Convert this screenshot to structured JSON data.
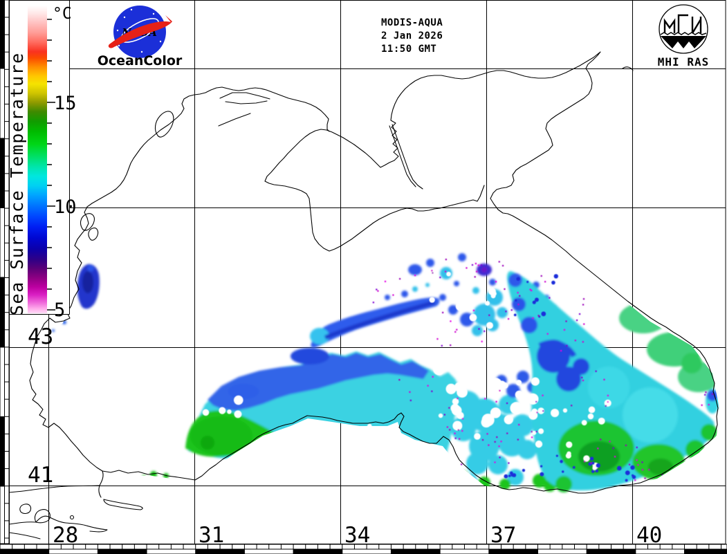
{
  "branding": {
    "nasa_text": "NASA",
    "oceancolor": "OceanColor",
    "mhi_ras": "MHI RAS"
  },
  "header": {
    "sensor": "MODIS-AQUA",
    "date": "2 Jan 2026",
    "time": "11:50 GMT"
  },
  "colorbar": {
    "title": "Sea Surface Temperature",
    "unit": "°C",
    "ticks": [
      "15",
      "10",
      "5"
    ],
    "gradient": [
      [
        0,
        "#ffffff"
      ],
      [
        0.025,
        "#ffe8e8"
      ],
      [
        0.055,
        "#ffc2c2"
      ],
      [
        0.09,
        "#ff9a94"
      ],
      [
        0.12,
        "#ff6a5e"
      ],
      [
        0.15,
        "#f93220"
      ],
      [
        0.17,
        "#fb4a00"
      ],
      [
        0.2,
        "#ff9000"
      ],
      [
        0.23,
        "#ffc800"
      ],
      [
        0.255,
        "#f5e300"
      ],
      [
        0.285,
        "#cfc400"
      ],
      [
        0.315,
        "#8f9a00"
      ],
      [
        0.345,
        "#3f8a00"
      ],
      [
        0.375,
        "#129b00"
      ],
      [
        0.41,
        "#00bb00"
      ],
      [
        0.45,
        "#00d616"
      ],
      [
        0.49,
        "#00e065"
      ],
      [
        0.525,
        "#00e5ad"
      ],
      [
        0.555,
        "#00e7df"
      ],
      [
        0.585,
        "#00d1f2"
      ],
      [
        0.615,
        "#00a6ff"
      ],
      [
        0.65,
        "#0075ff"
      ],
      [
        0.685,
        "#0047ff"
      ],
      [
        0.72,
        "#001ef2"
      ],
      [
        0.755,
        "#0007d2"
      ],
      [
        0.79,
        "#0b00ab"
      ],
      [
        0.825,
        "#2e0087"
      ],
      [
        0.855,
        "#5c0078"
      ],
      [
        0.885,
        "#8e0083"
      ],
      [
        0.915,
        "#bd00a1"
      ],
      [
        0.94,
        "#da20c4"
      ],
      [
        0.965,
        "#ef69da"
      ],
      [
        0.985,
        "#ffaceb"
      ],
      [
        1,
        "#ffdcf6"
      ]
    ]
  },
  "axes": {
    "lat": [
      "43",
      "41"
    ],
    "lon": [
      "28",
      "31",
      "34",
      "37",
      "40"
    ]
  },
  "colors": {
    "nasa_blue": "#1b2fd8",
    "logo_red": "#e62117",
    "oceancolor_text": "#2233cc",
    "sst_cyan": "#35d2e2",
    "sst_green": "#1dc430",
    "sst_blue": "#2e58ea",
    "sst_navy": "#1c2cd8",
    "cloud_edge_magenta": "#cf00cf"
  }
}
